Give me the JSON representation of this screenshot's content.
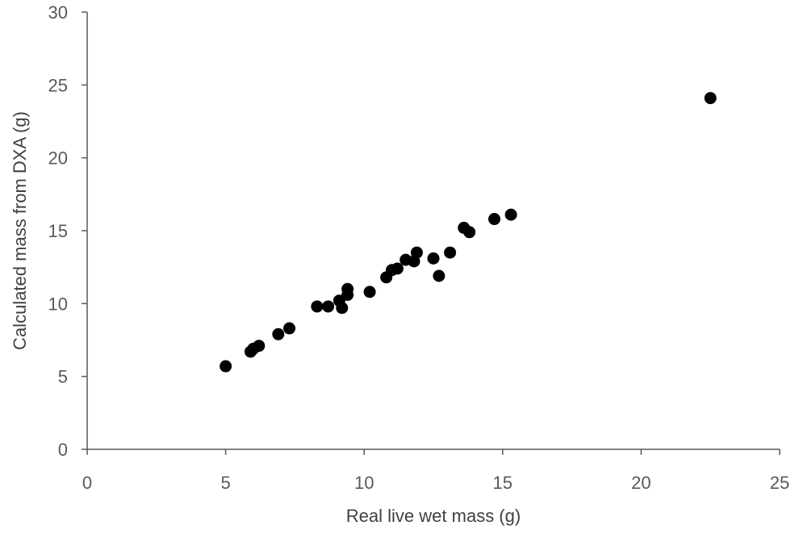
{
  "chart_data": {
    "type": "scatter",
    "title": "",
    "xlabel": "Real live wet mass (g)",
    "ylabel": "Calculated mass from DXA (g)",
    "xlim": [
      0,
      25
    ],
    "ylim": [
      0,
      30
    ],
    "xticks": [
      0,
      5,
      10,
      15,
      20,
      25
    ],
    "yticks": [
      0,
      5,
      10,
      15,
      20,
      25,
      30
    ],
    "grid": false,
    "legend": "none",
    "marker_color": "#000000",
    "series": [
      {
        "points": [
          [
            5.0,
            5.7
          ],
          [
            5.9,
            6.7
          ],
          [
            6.0,
            6.9
          ],
          [
            6.2,
            7.1
          ],
          [
            6.9,
            7.9
          ],
          [
            7.3,
            8.3
          ],
          [
            8.3,
            9.8
          ],
          [
            8.7,
            9.8
          ],
          [
            9.1,
            10.2
          ],
          [
            9.2,
            9.7
          ],
          [
            9.4,
            10.6
          ],
          [
            9.4,
            11.0
          ],
          [
            10.2,
            10.8
          ],
          [
            10.8,
            11.8
          ],
          [
            11.0,
            12.3
          ],
          [
            11.2,
            12.4
          ],
          [
            11.5,
            13.0
          ],
          [
            11.8,
            12.9
          ],
          [
            11.9,
            13.5
          ],
          [
            12.5,
            13.1
          ],
          [
            12.7,
            11.9
          ],
          [
            13.1,
            13.5
          ],
          [
            13.6,
            15.2
          ],
          [
            13.8,
            14.9
          ],
          [
            14.7,
            15.8
          ],
          [
            15.3,
            16.1
          ],
          [
            22.5,
            24.1
          ]
        ]
      }
    ]
  }
}
